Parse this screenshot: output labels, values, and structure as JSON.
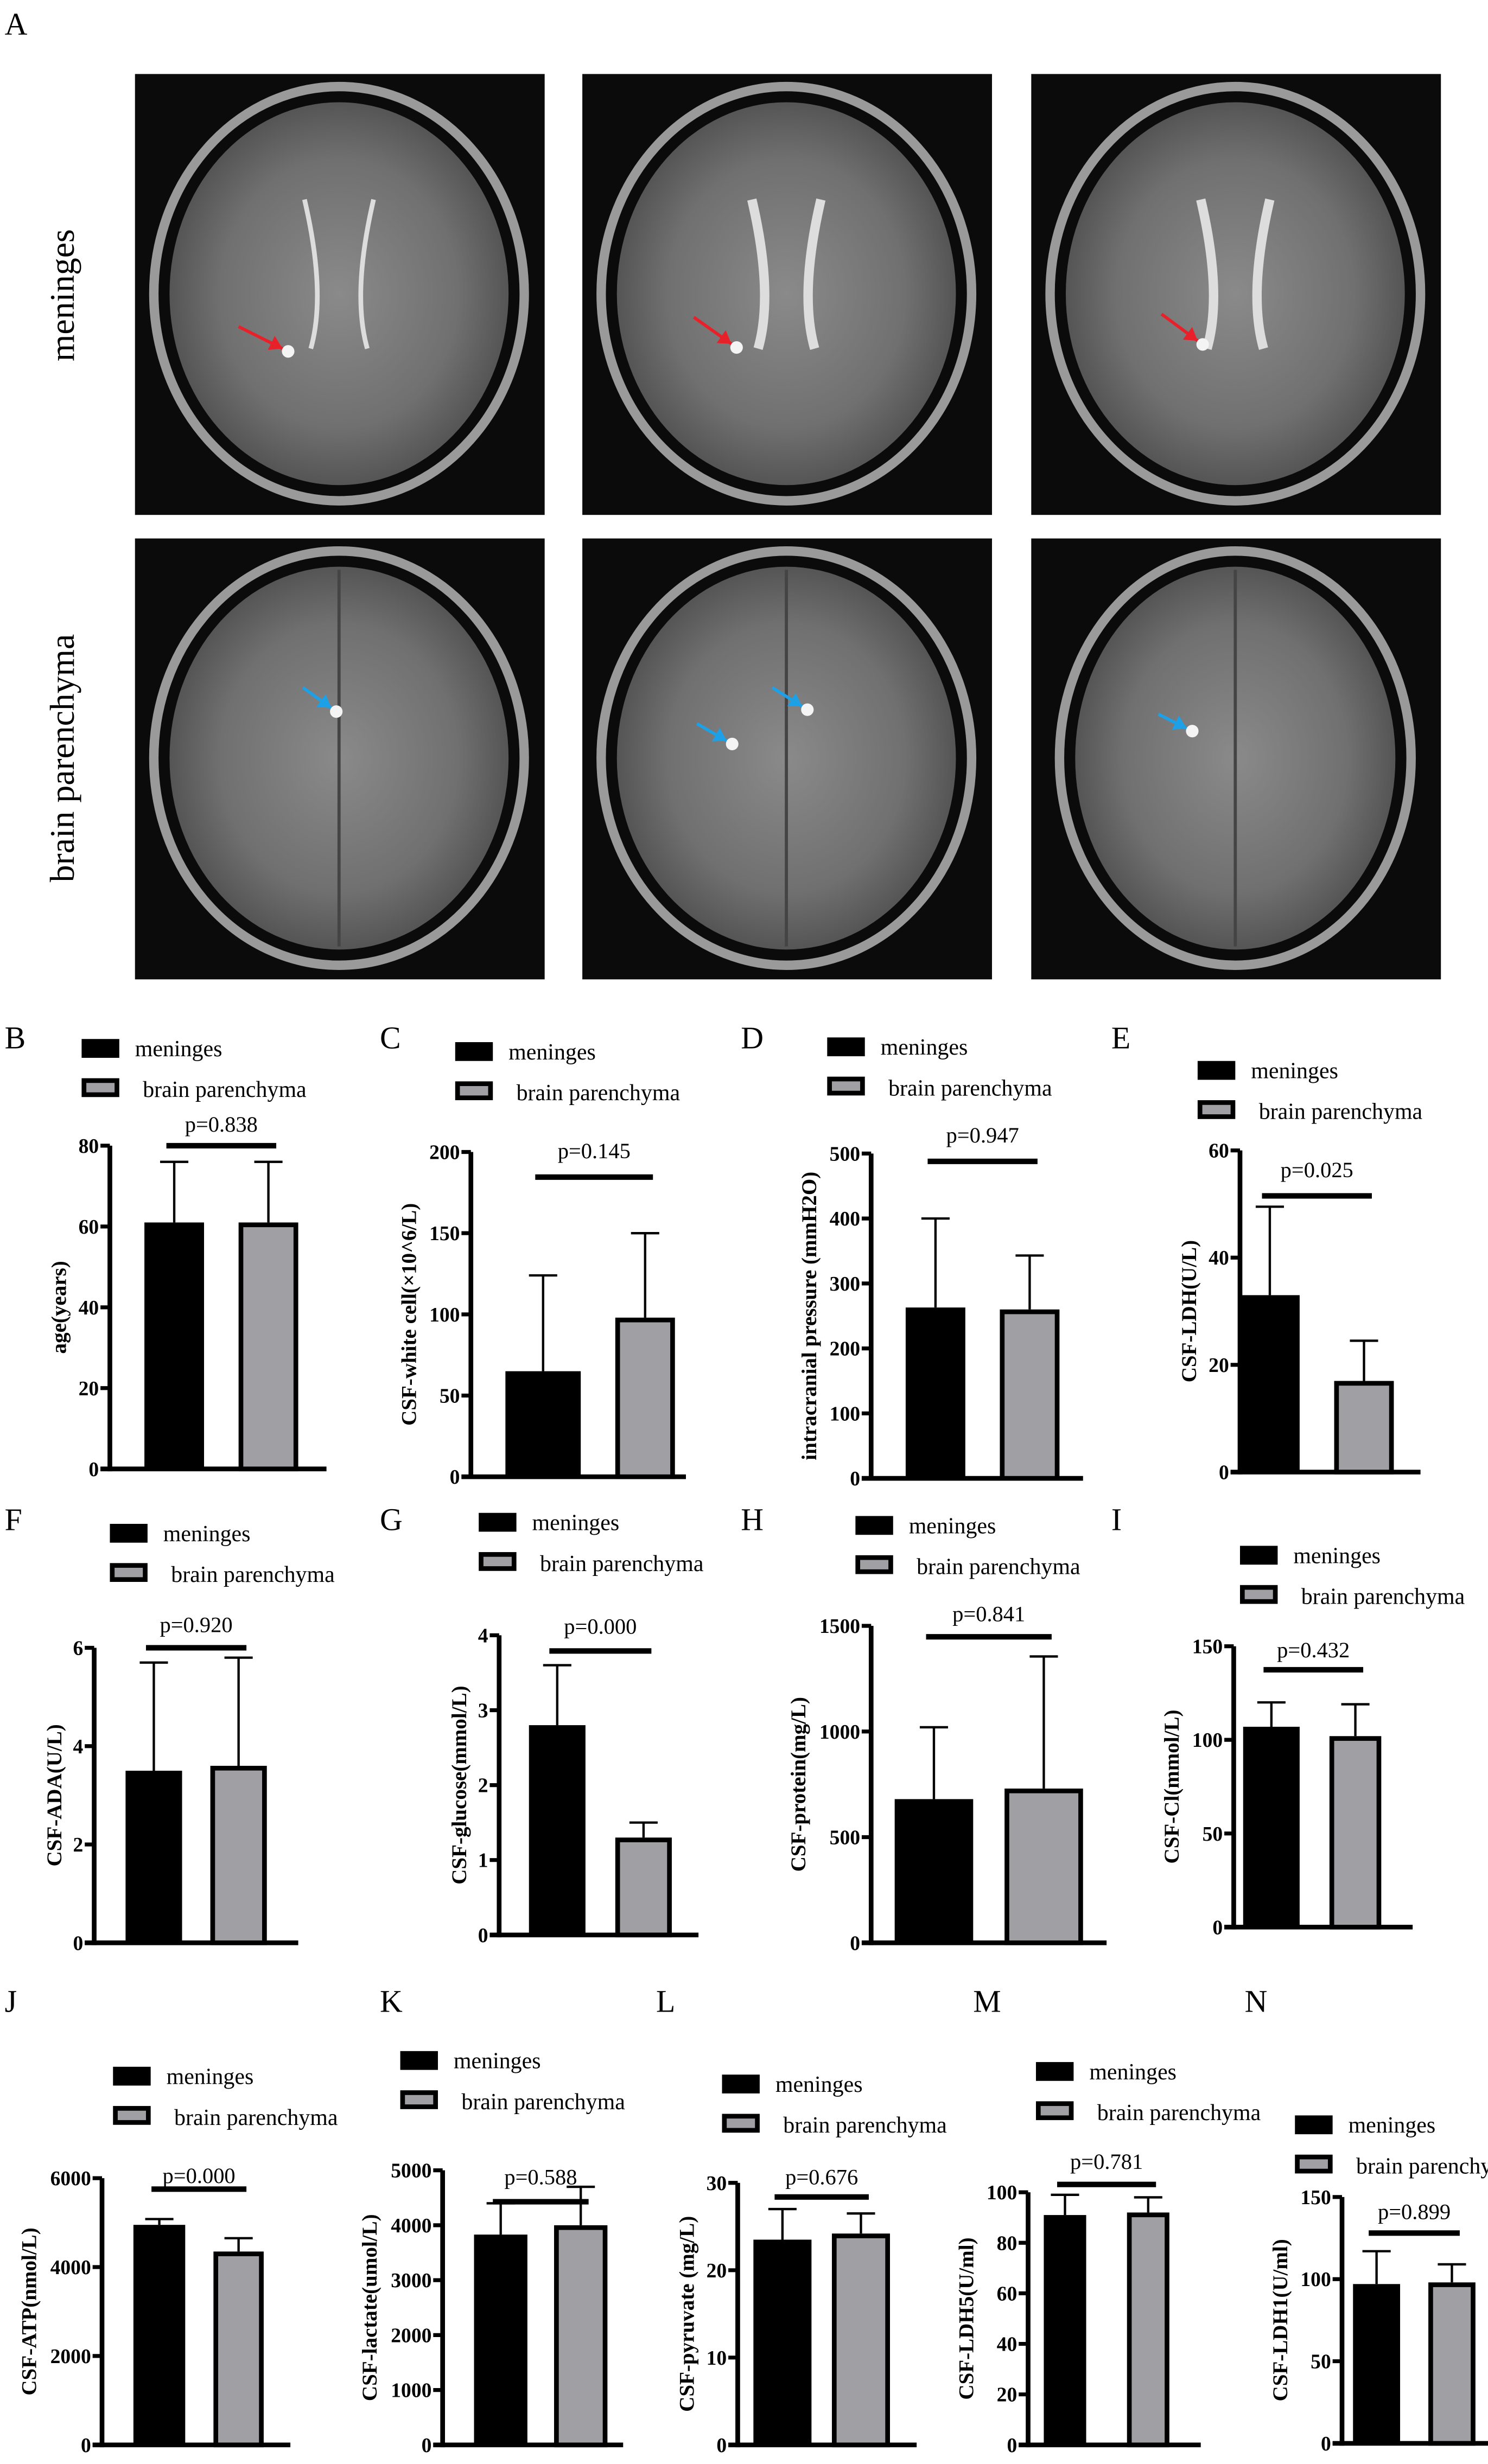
{
  "panel_a": {
    "letter": "A",
    "row_labels": [
      "meninges",
      "brain parenchyma"
    ],
    "arrow_colors": {
      "meninges": "#e8202a",
      "brain_parenchyma": "#1ea0e6"
    }
  },
  "legend": {
    "series1": "meninges",
    "series2": "brain parenchyma"
  },
  "colors": {
    "meninges": "#000000",
    "brain_parenchyma": "#a0a0a4"
  },
  "chart_data": [
    {
      "letter": "B",
      "type": "bar",
      "ylabel": "age(years)",
      "categories": [
        "meninges",
        "brain parenchyma"
      ],
      "values": [
        61,
        61
      ],
      "errors_upper": [
        76,
        76
      ],
      "ylim": [
        0,
        80
      ],
      "yticks": [
        "0",
        "20",
        "40",
        "60",
        "80"
      ],
      "pvalue": "p=0.838"
    },
    {
      "letter": "C",
      "type": "bar",
      "ylabel": "CSF-white cell(×10^6/L)",
      "categories": [
        "meninges",
        "brain parenchyma"
      ],
      "values": [
        65,
        98
      ],
      "errors_upper": [
        124,
        150
      ],
      "ylim": [
        0,
        200
      ],
      "yticks": [
        "0",
        "50",
        "100",
        "150",
        "200"
      ],
      "pvalue": "p=0.145"
    },
    {
      "letter": "D",
      "type": "bar",
      "ylabel": "intracranial pressure (mmH2O)",
      "categories": [
        "meninges",
        "brain parenchyma"
      ],
      "values": [
        263,
        260
      ],
      "errors_upper": [
        400,
        343
      ],
      "ylim": [
        0,
        500
      ],
      "yticks": [
        "0",
        "100",
        "200",
        "300",
        "400",
        "500"
      ],
      "pvalue": "p=0.947"
    },
    {
      "letter": "E",
      "type": "bar",
      "ylabel": "CSF-LDH(U/L)",
      "categories": [
        "meninges",
        "brain parenchyma"
      ],
      "values": [
        33,
        17
      ],
      "errors_upper": [
        49.5,
        24.5
      ],
      "ylim": [
        0,
        60
      ],
      "yticks": [
        "0",
        "20",
        "40",
        "60"
      ],
      "pvalue": "p=0.025"
    },
    {
      "letter": "F",
      "type": "bar",
      "ylabel": "CSF-ADA(U/L)",
      "categories": [
        "meninges",
        "brain parenchyma"
      ],
      "values": [
        3.5,
        3.6
      ],
      "errors_upper": [
        5.7,
        5.8
      ],
      "ylim": [
        0,
        6
      ],
      "yticks": [
        "0",
        "2",
        "4",
        "6"
      ],
      "pvalue": "p=0.920"
    },
    {
      "letter": "G",
      "type": "bar",
      "ylabel": "CSF-glucose(mmol/L)",
      "categories": [
        "meninges",
        "brain parenchyma"
      ],
      "values": [
        2.8,
        1.3
      ],
      "errors_upper": [
        3.6,
        1.5
      ],
      "ylim": [
        0,
        4
      ],
      "yticks": [
        "0",
        "1",
        "2",
        "3",
        "4"
      ],
      "pvalue": "p=0.000"
    },
    {
      "letter": "H",
      "type": "bar",
      "ylabel": "CSF-protein(mg/L)",
      "categories": [
        "meninges",
        "brain parenchyma"
      ],
      "values": [
        680,
        730
      ],
      "errors_upper": [
        1020,
        1355
      ],
      "ylim": [
        0,
        1500
      ],
      "yticks": [
        "0",
        "500",
        "1000",
        "1500"
      ],
      "pvalue": "p=0.841"
    },
    {
      "letter": "I",
      "type": "bar",
      "ylabel": "CSF-Cl(mmol/L)",
      "categories": [
        "meninges",
        "brain parenchyma"
      ],
      "values": [
        107,
        102
      ],
      "errors_upper": [
        120,
        119
      ],
      "ylim": [
        0,
        150
      ],
      "yticks": [
        "0",
        "50",
        "100",
        "150"
      ],
      "pvalue": "p=0.432"
    },
    {
      "letter": "J",
      "type": "bar",
      "ylabel": "CSF-ATP(nmol/L)",
      "categories": [
        "meninges",
        "brain parenchyma"
      ],
      "values": [
        4950,
        4350
      ],
      "errors_upper": [
        5080,
        4650
      ],
      "ylim": [
        0,
        6000
      ],
      "yticks": [
        "0",
        "2000",
        "4000",
        "6000"
      ],
      "pvalue": "p=0.000"
    },
    {
      "letter": "K",
      "type": "bar",
      "ylabel": "CSF-lactate(umol/L)",
      "categories": [
        "meninges",
        "brain parenchyma"
      ],
      "values": [
        3830,
        4000
      ],
      "errors_upper": [
        4400,
        4700
      ],
      "ylim": [
        0,
        5000
      ],
      "yticks": [
        "0",
        "1000",
        "2000",
        "3000",
        "4000",
        "5000"
      ],
      "pvalue": "p=0.588"
    },
    {
      "letter": "L",
      "type": "bar",
      "ylabel": "CSF-pyruvate (mg/L)",
      "categories": [
        "meninges",
        "brain parenchyma"
      ],
      "values": [
        23.5,
        24.2
      ],
      "errors_upper": [
        27,
        26.5
      ],
      "ylim": [
        0,
        30
      ],
      "yticks": [
        "0",
        "10",
        "20",
        "30"
      ],
      "pvalue": "p=0.676"
    },
    {
      "letter": "M",
      "type": "bar",
      "ylabel": "CSF-LDH5(U/ml)",
      "categories": [
        "meninges",
        "brain parenchyma"
      ],
      "values": [
        91,
        92
      ],
      "errors_upper": [
        99,
        98
      ],
      "ylim": [
        0,
        100
      ],
      "yticks": [
        "0",
        "20",
        "40",
        "60",
        "80",
        "100"
      ],
      "pvalue": "p=0.781"
    },
    {
      "letter": "N",
      "type": "bar",
      "ylabel": "CSF-LDH1(U/ml)",
      "categories": [
        "meninges",
        "brain parenchyma"
      ],
      "values": [
        97,
        98
      ],
      "errors_upper": [
        117,
        109
      ],
      "ylim": [
        0,
        150
      ],
      "yticks": [
        "0",
        "50",
        "100",
        "150"
      ],
      "pvalue": "p=0.899"
    }
  ]
}
